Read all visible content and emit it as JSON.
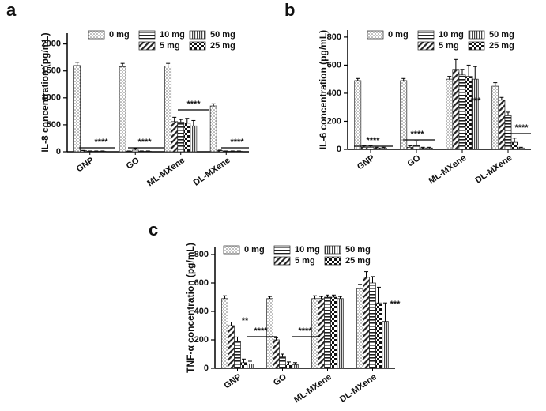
{
  "chart_data": [
    {
      "type": "bar",
      "panel": "a",
      "ylabel": "IL-8 concentration (pg/mL)",
      "categories": [
        "GNP",
        "GO",
        "ML-MXene",
        "DL-MXene"
      ],
      "ylim": [
        0,
        2200
      ],
      "yticks": [
        0,
        500,
        1000,
        1500,
        2000
      ],
      "series": [
        {
          "name": "0 mg",
          "pattern": "dots",
          "values": [
            1600,
            1580,
            1590,
            850
          ],
          "errors": [
            60,
            60,
            50,
            40
          ]
        },
        {
          "name": "5 mg",
          "pattern": "diagonal",
          "values": [
            20,
            10,
            560,
            20
          ],
          "errors": [
            5,
            5,
            80,
            10
          ]
        },
        {
          "name": "10 mg",
          "pattern": "horizontal",
          "values": [
            10,
            30,
            550,
            10
          ],
          "errors": [
            5,
            30,
            50,
            5
          ]
        },
        {
          "name": "25 mg",
          "pattern": "checker",
          "values": [
            10,
            10,
            530,
            10
          ],
          "errors": [
            5,
            5,
            90,
            5
          ]
        },
        {
          "name": "50 mg",
          "pattern": "vertical",
          "values": [
            10,
            10,
            480,
            10
          ],
          "errors": [
            5,
            5,
            100,
            5
          ]
        }
      ],
      "annotations": [
        "****",
        "****",
        "****",
        "****"
      ]
    },
    {
      "type": "bar",
      "panel": "b",
      "ylabel": "IL-6 concentration (pg/mL)",
      "categories": [
        "GNP",
        "GO",
        "ML-MXene",
        "DL-MXene"
      ],
      "ylim": [
        0,
        850
      ],
      "yticks": [
        0,
        200,
        400,
        600,
        800
      ],
      "series": [
        {
          "name": "0 mg",
          "pattern": "dots",
          "values": [
            490,
            490,
            500,
            450
          ],
          "errors": [
            15,
            15,
            20,
            25
          ]
        },
        {
          "name": "5 mg",
          "pattern": "diagonal",
          "values": [
            15,
            15,
            570,
            350
          ],
          "errors": [
            10,
            10,
            70,
            20
          ]
        },
        {
          "name": "10 mg",
          "pattern": "horizontal",
          "values": [
            15,
            30,
            530,
            240
          ],
          "errors": [
            10,
            30,
            40,
            25
          ]
        },
        {
          "name": "25 mg",
          "pattern": "checker",
          "values": [
            10,
            10,
            520,
            50
          ],
          "errors": [
            5,
            5,
            80,
            30
          ]
        },
        {
          "name": "50 mg",
          "pattern": "vertical",
          "values": [
            10,
            10,
            500,
            10
          ],
          "errors": [
            5,
            5,
            90,
            5
          ]
        }
      ],
      "annotations": [
        "****",
        "****",
        "***",
        "****"
      ]
    },
    {
      "type": "bar",
      "panel": "c",
      "ylabel": "TNF-α concentration (pg/mL)",
      "categories": [
        "GNP",
        "GO",
        "ML-MXene",
        "DL-MXene"
      ],
      "ylim": [
        0,
        850
      ],
      "yticks": [
        0,
        200,
        400,
        600,
        800
      ],
      "series": [
        {
          "name": "0 mg",
          "pattern": "dots",
          "values": [
            490,
            490,
            490,
            560
          ],
          "errors": [
            20,
            15,
            20,
            30
          ]
        },
        {
          "name": "5 mg",
          "pattern": "diagonal",
          "values": [
            300,
            200,
            490,
            640
          ],
          "errors": [
            25,
            15,
            15,
            40
          ]
        },
        {
          "name": "10 mg",
          "pattern": "horizontal",
          "values": [
            190,
            80,
            500,
            600
          ],
          "errors": [
            30,
            20,
            15,
            45
          ]
        },
        {
          "name": "25 mg",
          "pattern": "checker",
          "values": [
            40,
            30,
            500,
            460
          ],
          "errors": [
            25,
            15,
            15,
            110
          ]
        },
        {
          "name": "50 mg",
          "pattern": "vertical",
          "values": [
            30,
            25,
            490,
            330
          ],
          "errors": [
            20,
            15,
            15,
            130
          ]
        }
      ],
      "annotations": [
        "**",
        "****",
        "****",
        "***"
      ]
    }
  ]
}
